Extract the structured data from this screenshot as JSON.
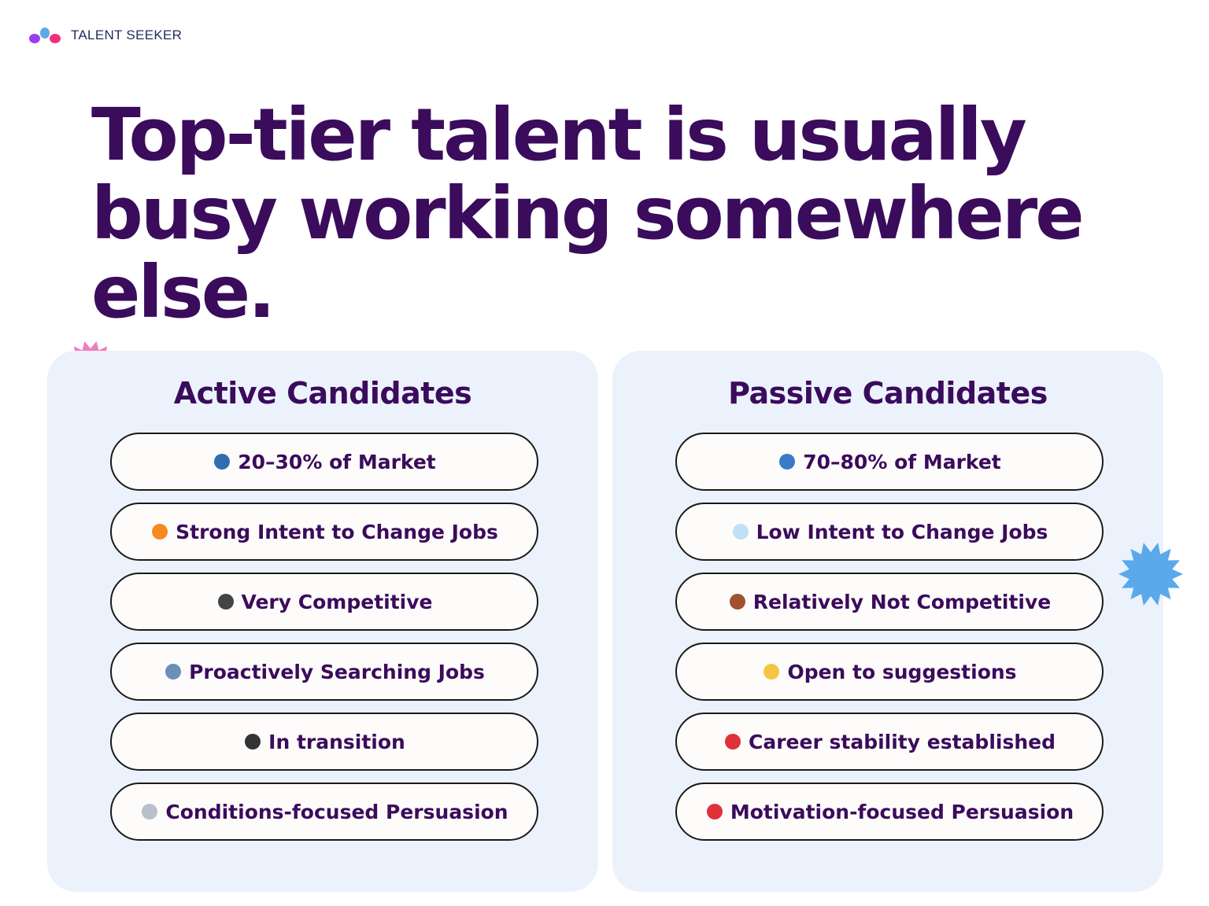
{
  "brand": {
    "name": "TALENT SEEKER",
    "colors": [
      "#9b3cf0",
      "#5aa9ea",
      "#f0307a"
    ]
  },
  "headline": "Top-tier talent is usually busy working somewhere else.",
  "active": {
    "title": "Active Candidates",
    "items": [
      {
        "icon": "people-icon",
        "label": "20–30% of Market",
        "color": "#2f6fb0"
      },
      {
        "icon": "fire-icon",
        "label": "Strong Intent to Change Jobs",
        "color": "#f58a1f"
      },
      {
        "icon": "checkered-flag-icon",
        "label": "Very Competitive",
        "color": "#444444"
      },
      {
        "icon": "magnifier-icon",
        "label": "Proactively Searching Jobs",
        "color": "#6a8fb8"
      },
      {
        "icon": "wheel-icon",
        "label": "In transition",
        "color": "#333333"
      },
      {
        "icon": "document-icon",
        "label": "Conditions-focused Persuasion",
        "color": "#b8c0cc"
      }
    ]
  },
  "passive": {
    "title": "Passive Candidates",
    "items": [
      {
        "icon": "globe-icon",
        "label": "70–80% of Market",
        "color": "#3a7bc8"
      },
      {
        "icon": "thought-bubble-icon",
        "label": "Low Intent to Change Jobs",
        "color": "#bfe0f5"
      },
      {
        "icon": "door-icon",
        "label": "Relatively Not Competitive",
        "color": "#a0522d"
      },
      {
        "icon": "ear-icon",
        "label": "Open to suggestions",
        "color": "#f5c542"
      },
      {
        "icon": "pushpin-icon",
        "label": "Career stability established",
        "color": "#e0303a"
      },
      {
        "icon": "target-icon",
        "label": "Motivation-focused Persuasion",
        "color": "#e0303a"
      }
    ]
  },
  "decor": {
    "pink_star": "#f07cc0",
    "blue_star": "#5aa9ea"
  }
}
